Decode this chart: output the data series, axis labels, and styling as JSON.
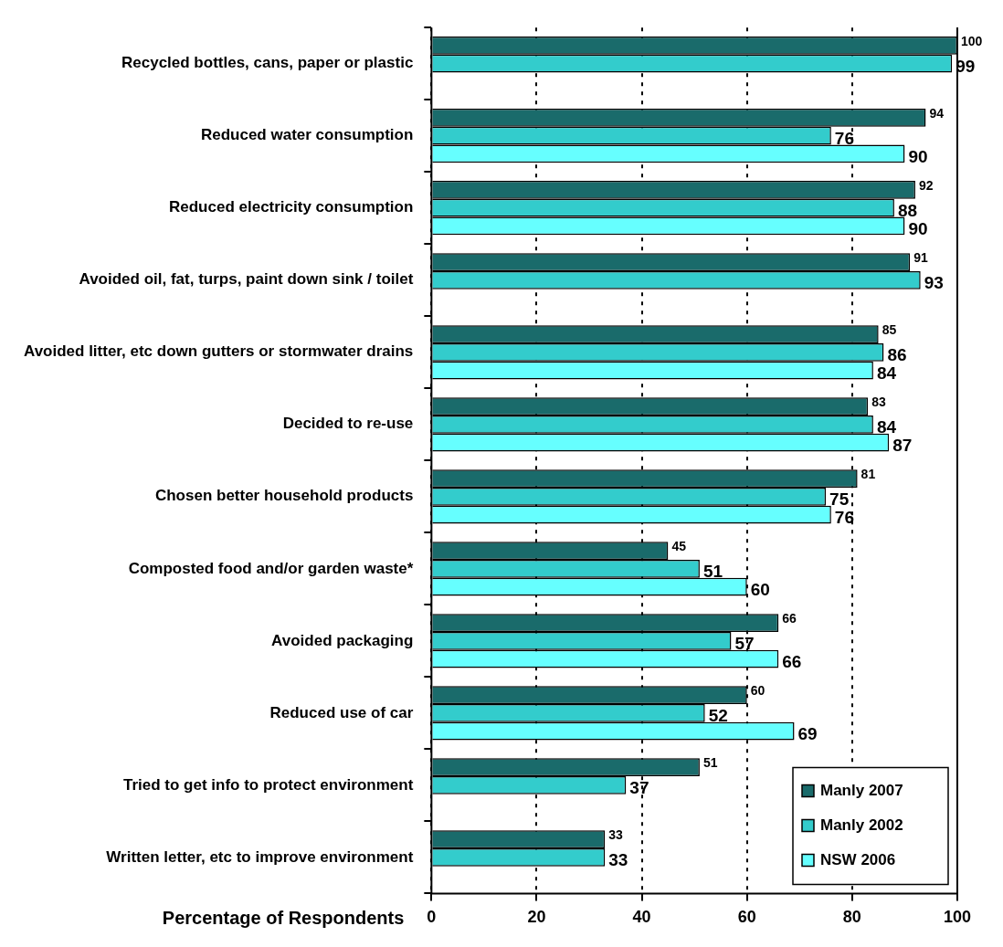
{
  "chart_data": {
    "type": "bar",
    "orientation": "horizontal",
    "xlabel": "Percentage of Respondents",
    "categories": [
      "Recycled bottles, cans, paper or plastic",
      "Reduced water consumption",
      "Reduced electricity consumption",
      "Avoided oil, fat, turps, paint down sink / toilet",
      "Avoided litter, etc down gutters or stormwater drains",
      "Decided to re-use",
      "Chosen better household products",
      "Composted food and/or garden waste*",
      "Avoided packaging",
      "Reduced use of car",
      "Tried to get info to protect environment",
      "Written letter, etc to improve environment"
    ],
    "series": [
      {
        "name": "Manly 2007",
        "color": "#1a6b6b",
        "values": [
          100,
          94,
          92,
          91,
          85,
          83,
          81,
          45,
          66,
          60,
          51,
          33
        ]
      },
      {
        "name": "Manly 2002",
        "color": "#33cccc",
        "values": [
          99,
          76,
          88,
          93,
          86,
          84,
          75,
          51,
          57,
          52,
          37,
          33
        ]
      },
      {
        "name": "NSW 2006",
        "color": "#66ffff",
        "values": [
          null,
          90,
          90,
          null,
          84,
          87,
          76,
          60,
          66,
          69,
          null,
          null
        ]
      }
    ],
    "xlim": [
      0,
      100
    ],
    "xticks": [
      0,
      20,
      40,
      60,
      80,
      100
    ],
    "grid": "x",
    "legend": "bottom right",
    "data_labels": true
  }
}
